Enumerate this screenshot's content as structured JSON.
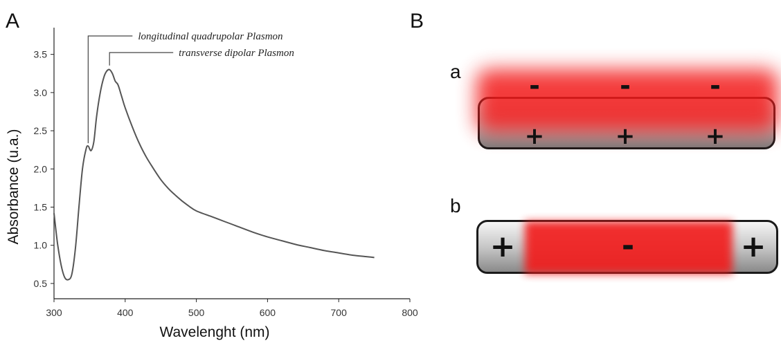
{
  "panel_labels": {
    "left": "A",
    "right": "B"
  },
  "chart_data": {
    "type": "line",
    "title": "",
    "xlabel": "Wavelenght (nm)",
    "ylabel": "Absorbance (u.a.)",
    "xlim": [
      300,
      800
    ],
    "ylim": [
      0.3,
      3.85
    ],
    "x_ticks": [
      "300",
      "400",
      "500",
      "600",
      "700",
      "800"
    ],
    "y_ticks": [
      "0.5",
      "1.0",
      "1.5",
      "2.0",
      "2.5",
      "3.0",
      "3.5"
    ],
    "grid": false,
    "series": [
      {
        "x": [
          300,
          305,
          310,
          315,
          320,
          325,
          330,
          335,
          340,
          345,
          348,
          352,
          356,
          360,
          365,
          370,
          374,
          378,
          382,
          386,
          390,
          395,
          400,
          410,
          420,
          430,
          440,
          450,
          460,
          470,
          480,
          490,
          500,
          520,
          540,
          560,
          580,
          600,
          620,
          640,
          660,
          680,
          700,
          720,
          740,
          750
        ],
        "y": [
          1.42,
          1.02,
          0.74,
          0.58,
          0.55,
          0.62,
          0.95,
          1.5,
          2.0,
          2.26,
          2.3,
          2.24,
          2.36,
          2.7,
          3.0,
          3.2,
          3.28,
          3.3,
          3.25,
          3.15,
          3.1,
          2.95,
          2.8,
          2.55,
          2.33,
          2.15,
          2.0,
          1.86,
          1.75,
          1.66,
          1.58,
          1.51,
          1.45,
          1.38,
          1.31,
          1.24,
          1.17,
          1.11,
          1.06,
          1.01,
          0.97,
          0.93,
          0.9,
          0.87,
          0.85,
          0.84
        ]
      }
    ],
    "annotations": [
      {
        "text": "longitudinal quadrupolar Plasmon",
        "x": 348,
        "y": 2.3
      },
      {
        "text": "transverse dipolar Plasmon",
        "x": 378,
        "y": 3.3
      }
    ]
  },
  "diagram": {
    "a": {
      "label": "a",
      "top_signs": [
        "-",
        "-",
        "-"
      ],
      "bottom_signs": [
        "+",
        "+",
        "+"
      ]
    },
    "b": {
      "label": "b",
      "left_sign": "+",
      "center_sign": "-",
      "right_sign": "+"
    }
  },
  "colors": {
    "curve": "#555555",
    "axis": "#222222",
    "cloud": "#f21a1a",
    "rod_border": "#1a1a1a"
  }
}
